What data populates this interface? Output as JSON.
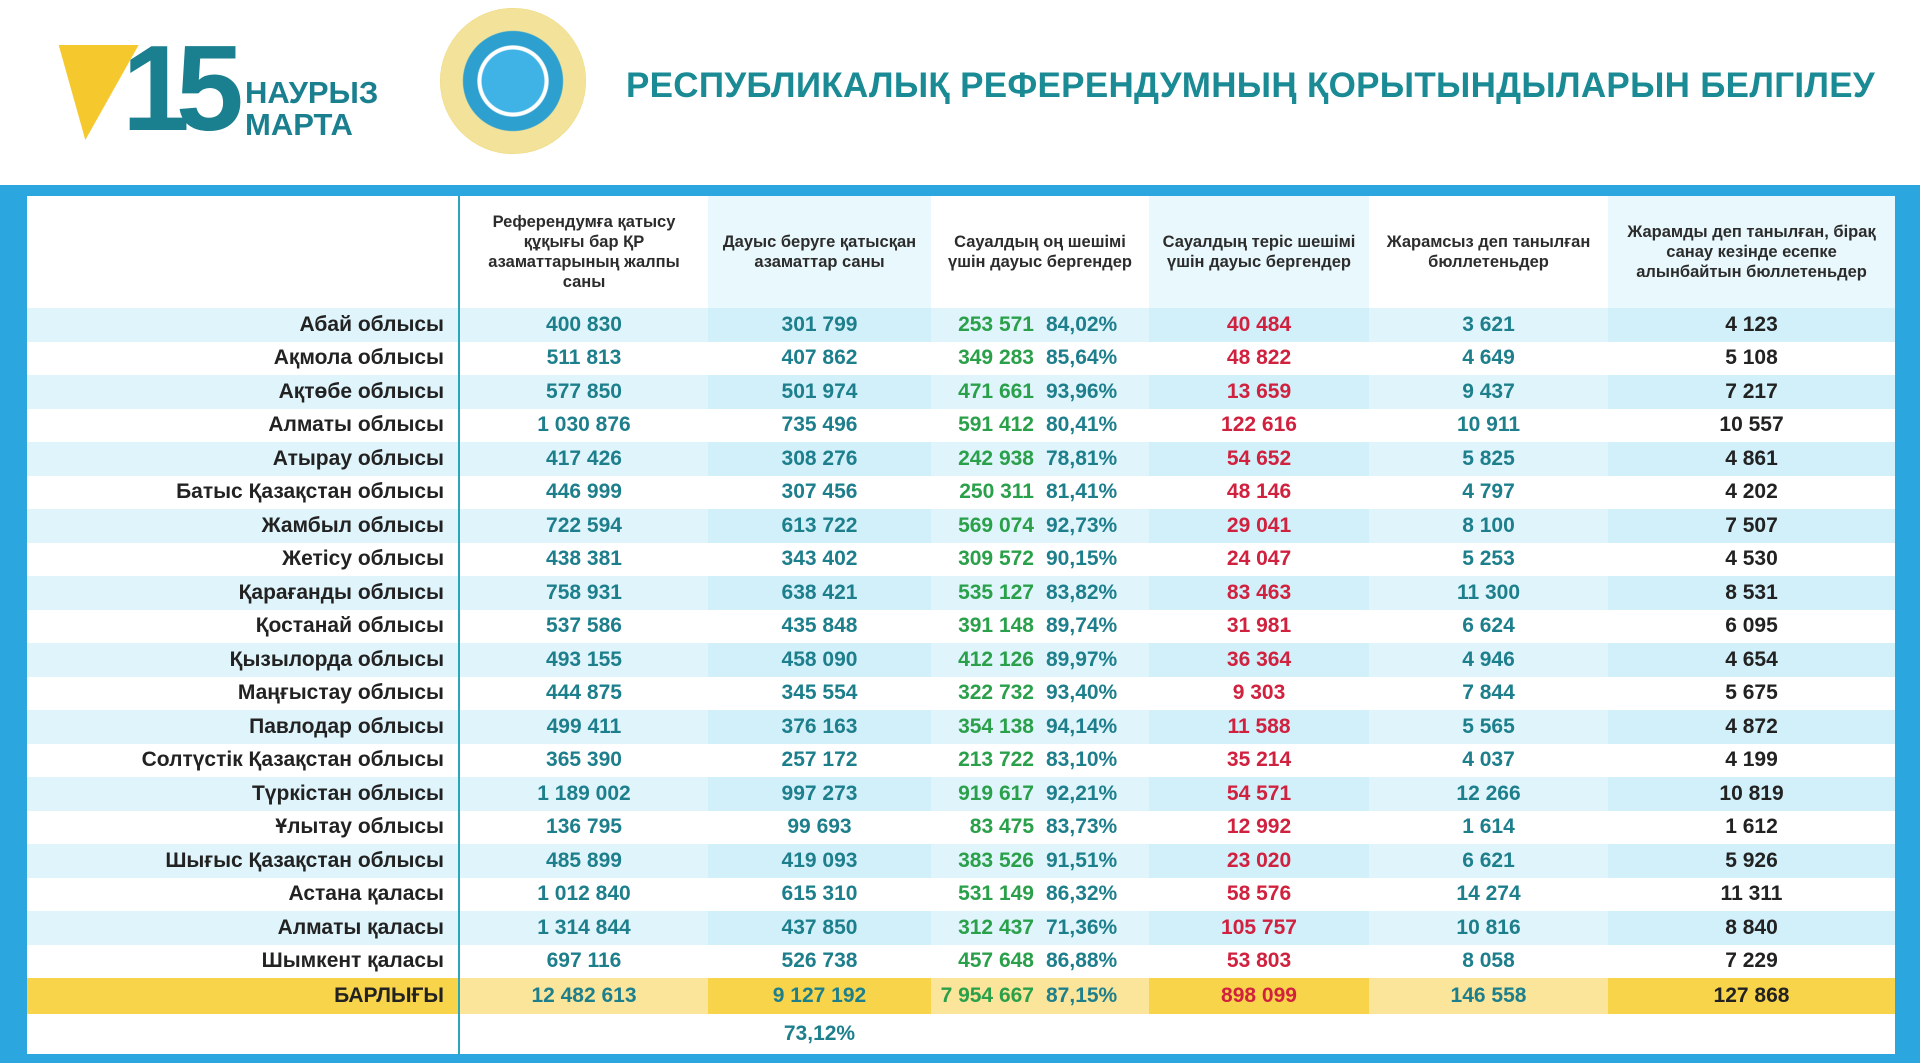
{
  "header": {
    "logo_number": "15",
    "logo_line1": "НАУРЫЗ",
    "logo_line2": "МАРТА",
    "title": "РЕСПУБЛИКАЛЫҚ РЕФЕРЕНДУМНЫҢ ҚОРЫТЫНДЫЛАРЫН БЕЛГІЛЕУ",
    "seal": "cec-seal"
  },
  "colors": {
    "frame": "#2ba6de",
    "yes": "#2aa04a",
    "no": "#d0213f",
    "teal": "#1e7f8c",
    "total": "#f8d44a"
  },
  "columns": [
    "Референдумға қатысу құқығы бар ҚР азаматтарының жалпы саны",
    "Дауыс беруге қатысқан азаматтар саны",
    "Сауалдың оң шешімі үшін дауыс бергендер",
    "Сауалдың теріс шешімі үшін дауыс бергендер",
    "Жарамсыз деп танылған бюллетеньдер",
    "Жарамды деп танылған, бірақ санау кезінде есепке алынбайтын бюллетеньдер"
  ],
  "rows": [
    {
      "region": "Абай облысы",
      "eligible": "400 830",
      "voted": "301 799",
      "yes": "253 571",
      "yes_pct": "84,02%",
      "no": "40 484",
      "invalid": "3 621",
      "uncounted": "4 123"
    },
    {
      "region": "Ақмола облысы",
      "eligible": "511 813",
      "voted": "407 862",
      "yes": "349 283",
      "yes_pct": "85,64%",
      "no": "48 822",
      "invalid": "4 649",
      "uncounted": "5 108"
    },
    {
      "region": "Ақтөбе облысы",
      "eligible": "577 850",
      "voted": "501 974",
      "yes": "471 661",
      "yes_pct": "93,96%",
      "no": "13 659",
      "invalid": "9 437",
      "uncounted": "7 217"
    },
    {
      "region": "Алматы облысы",
      "eligible": "1 030 876",
      "voted": "735 496",
      "yes": "591 412",
      "yes_pct": "80,41%",
      "no": "122 616",
      "invalid": "10 911",
      "uncounted": "10 557"
    },
    {
      "region": "Атырау облысы",
      "eligible": "417 426",
      "voted": "308 276",
      "yes": "242 938",
      "yes_pct": "78,81%",
      "no": "54 652",
      "invalid": "5 825",
      "uncounted": "4 861"
    },
    {
      "region": "Батыс Қазақстан облысы",
      "eligible": "446 999",
      "voted": "307 456",
      "yes": "250 311",
      "yes_pct": "81,41%",
      "no": "48 146",
      "invalid": "4 797",
      "uncounted": "4 202"
    },
    {
      "region": "Жамбыл облысы",
      "eligible": "722 594",
      "voted": "613 722",
      "yes": "569 074",
      "yes_pct": "92,73%",
      "no": "29 041",
      "invalid": "8 100",
      "uncounted": "7 507"
    },
    {
      "region": "Жетісу облысы",
      "eligible": "438 381",
      "voted": "343 402",
      "yes": "309 572",
      "yes_pct": "90,15%",
      "no": "24 047",
      "invalid": "5 253",
      "uncounted": "4 530"
    },
    {
      "region": "Қарағанды облысы",
      "eligible": "758 931",
      "voted": "638 421",
      "yes": "535 127",
      "yes_pct": "83,82%",
      "no": "83 463",
      "invalid": "11 300",
      "uncounted": "8 531"
    },
    {
      "region": "Қостанай облысы",
      "eligible": "537 586",
      "voted": "435 848",
      "yes": "391 148",
      "yes_pct": "89,74%",
      "no": "31 981",
      "invalid": "6 624",
      "uncounted": "6 095"
    },
    {
      "region": "Қызылорда облысы",
      "eligible": "493 155",
      "voted": "458 090",
      "yes": "412 126",
      "yes_pct": "89,97%",
      "no": "36 364",
      "invalid": "4 946",
      "uncounted": "4 654"
    },
    {
      "region": "Маңғыстау облысы",
      "eligible": "444 875",
      "voted": "345 554",
      "yes": "322 732",
      "yes_pct": "93,40%",
      "no": "9 303",
      "invalid": "7 844",
      "uncounted": "5 675"
    },
    {
      "region": "Павлодар облысы",
      "eligible": "499 411",
      "voted": "376 163",
      "yes": "354 138",
      "yes_pct": "94,14%",
      "no": "11 588",
      "invalid": "5 565",
      "uncounted": "4 872"
    },
    {
      "region": "Солтүстік Қазақстан облысы",
      "eligible": "365 390",
      "voted": "257 172",
      "yes": "213 722",
      "yes_pct": "83,10%",
      "no": "35 214",
      "invalid": "4 037",
      "uncounted": "4 199"
    },
    {
      "region": "Түркістан облысы",
      "eligible": "1 189 002",
      "voted": "997 273",
      "yes": "919 617",
      "yes_pct": "92,21%",
      "no": "54 571",
      "invalid": "12 266",
      "uncounted": "10 819"
    },
    {
      "region": "Ұлытау облысы",
      "eligible": "136 795",
      "voted": "99 693",
      "yes": "83 475",
      "yes_pct": "83,73%",
      "no": "12 992",
      "invalid": "1 614",
      "uncounted": "1 612"
    },
    {
      "region": "Шығыс Қазақстан облысы",
      "eligible": "485 899",
      "voted": "419 093",
      "yes": "383 526",
      "yes_pct": "91,51%",
      "no": "23 020",
      "invalid": "6 621",
      "uncounted": "5 926"
    },
    {
      "region": "Астана қаласы",
      "eligible": "1 012 840",
      "voted": "615 310",
      "yes": "531 149",
      "yes_pct": "86,32%",
      "no": "58 576",
      "invalid": "14 274",
      "uncounted": "11 311"
    },
    {
      "region": "Алматы қаласы",
      "eligible": "1 314 844",
      "voted": "437 850",
      "yes": "312 437",
      "yes_pct": "71,36%",
      "no": "105 757",
      "invalid": "10 816",
      "uncounted": "8 840"
    },
    {
      "region": "Шымкент қаласы",
      "eligible": "697 116",
      "voted": "526 738",
      "yes": "457 648",
      "yes_pct": "86,88%",
      "no": "53 803",
      "invalid": "8 058",
      "uncounted": "7 229"
    }
  ],
  "total": {
    "region": "БАРЛЫҒЫ",
    "eligible": "12 482 613",
    "voted": "9 127 192",
    "yes": "7 954 667",
    "yes_pct": "87,15%",
    "no": "898 099",
    "invalid": "146 558",
    "uncounted": "127 868",
    "turnout": "73,12%"
  }
}
